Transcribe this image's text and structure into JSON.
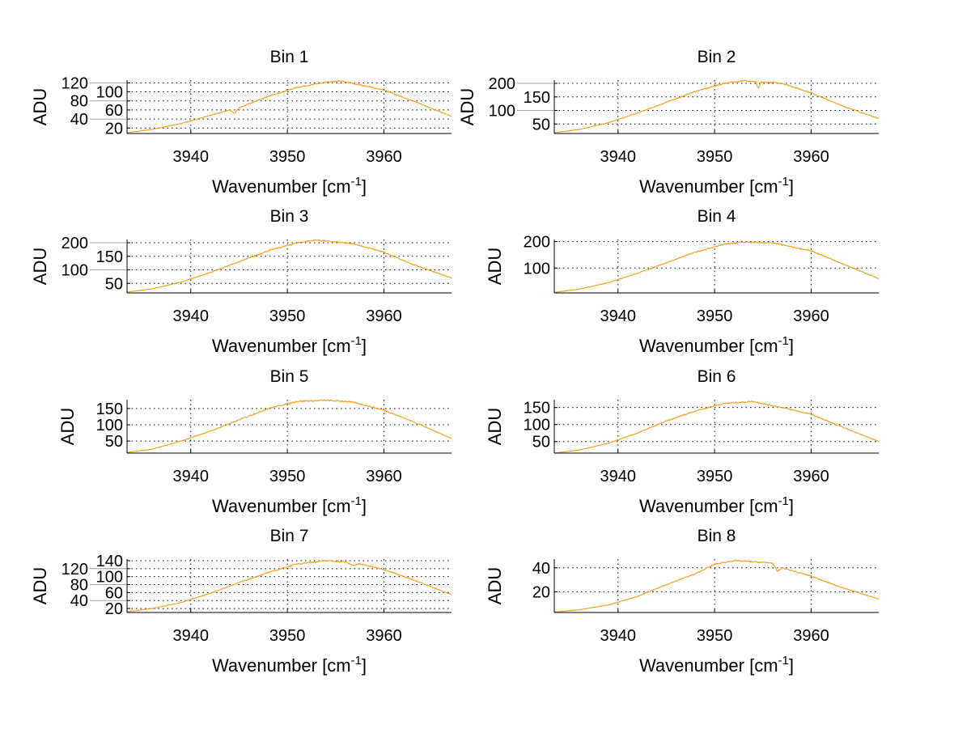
{
  "chart_data": {
    "type": "line",
    "layout": "4x2 subplots",
    "line_color": "#f5a020",
    "subplots": [
      {
        "title": "Bin 1",
        "ylabel": "ADU",
        "xlabel_main": "Wavenumber [cm",
        "xlabel_sup": "-1",
        "xlabel_end": "]",
        "xlim": [
          3933.4,
          3967
        ],
        "ylim": [
          8,
          126
        ],
        "xticks": [
          3940,
          3950,
          3960
        ],
        "yticks": [
          20,
          40,
          60,
          80,
          100,
          120
        ],
        "grid": true,
        "x": [
          3933.4,
          3936,
          3939,
          3942,
          3944,
          3944.5,
          3945,
          3948,
          3951,
          3954,
          3955.5,
          3957,
          3960,
          3963,
          3967
        ],
        "y": [
          10,
          17,
          30,
          48,
          60,
          52,
          65,
          90,
          110,
          121,
          124,
          118,
          104,
          80,
          46
        ]
      },
      {
        "title": "Bin 2",
        "ylabel": "ADU",
        "xlabel_main": "Wavenumber [cm",
        "xlabel_sup": "-1",
        "xlabel_end": "]",
        "xlim": [
          3933.4,
          3967
        ],
        "ylim": [
          15,
          212
        ],
        "xticks": [
          3940,
          3950,
          3960
        ],
        "yticks": [
          50,
          100,
          150,
          200
        ],
        "grid": true,
        "x": [
          3933.4,
          3936,
          3939,
          3942,
          3945,
          3948,
          3951,
          3953,
          3954.3,
          3954.5,
          3954.8,
          3957,
          3960,
          3963,
          3967
        ],
        "y": [
          18,
          30,
          55,
          90,
          130,
          170,
          200,
          210,
          205,
          178,
          205,
          200,
          165,
          120,
          70
        ]
      },
      {
        "title": "Bin 3",
        "ylabel": "ADU",
        "xlabel_main": "Wavenumber [cm",
        "xlabel_sup": "-1",
        "xlabel_end": "]",
        "xlim": [
          3933.4,
          3967
        ],
        "ylim": [
          15,
          212
        ],
        "xticks": [
          3940,
          3950,
          3960
        ],
        "yticks": [
          50,
          100,
          150,
          200
        ],
        "grid": true,
        "x": [
          3933.4,
          3936,
          3939,
          3942,
          3945,
          3948,
          3951,
          3953,
          3957,
          3960,
          3963,
          3967
        ],
        "y": [
          18,
          30,
          55,
          90,
          130,
          170,
          200,
          210,
          195,
          165,
          120,
          70
        ]
      },
      {
        "title": "Bin 4",
        "ylabel": "ADU",
        "xlabel_main": "Wavenumber [cm",
        "xlabel_sup": "-1",
        "xlabel_end": "]",
        "xlim": [
          3933.4,
          3967
        ],
        "ylim": [
          6,
          208
        ],
        "xticks": [
          3940,
          3950,
          3960
        ],
        "yticks": [
          100,
          200
        ],
        "grid": true,
        "x": [
          3933.4,
          3936,
          3939,
          3942,
          3945,
          3948,
          3951,
          3953,
          3956,
          3960,
          3963,
          3967
        ],
        "y": [
          8,
          20,
          45,
          80,
          120,
          160,
          190,
          198,
          195,
          165,
          120,
          60
        ]
      },
      {
        "title": "Bin 5",
        "ylabel": "ADU",
        "xlabel_main": "Wavenumber [cm",
        "xlabel_sup": "-1",
        "xlabel_end": "]",
        "xlim": [
          3933.4,
          3967
        ],
        "ylim": [
          13,
          177
        ],
        "xticks": [
          3940,
          3950,
          3960
        ],
        "yticks": [
          50,
          100,
          150
        ],
        "grid": true,
        "x": [
          3933.4,
          3936,
          3939,
          3942,
          3945,
          3948,
          3951,
          3954,
          3956,
          3957,
          3960,
          3963,
          3967
        ],
        "y": [
          15,
          25,
          50,
          80,
          115,
          150,
          172,
          175,
          172,
          168,
          145,
          110,
          58
        ]
      },
      {
        "title": "Bin 6",
        "ylabel": "ADU",
        "xlabel_main": "Wavenumber [cm",
        "xlabel_sup": "-1",
        "xlabel_end": "]",
        "xlim": [
          3933.4,
          3967
        ],
        "ylim": [
          16,
          173
        ],
        "xticks": [
          3940,
          3950,
          3960
        ],
        "yticks": [
          50,
          100,
          150
        ],
        "grid": true,
        "x": [
          3933.4,
          3936,
          3939,
          3942,
          3945,
          3948,
          3951,
          3954,
          3956,
          3957,
          3960,
          3963,
          3967
        ],
        "y": [
          16,
          25,
          45,
          75,
          110,
          140,
          162,
          168,
          155,
          150,
          130,
          95,
          50
        ]
      },
      {
        "title": "Bin 7",
        "ylabel": "ADU",
        "xlabel_main": "Wavenumber [cm",
        "xlabel_sup": "-1",
        "xlabel_end": "]",
        "xlim": [
          3933.4,
          3967
        ],
        "ylim": [
          10,
          144
        ],
        "xticks": [
          3940,
          3950,
          3960
        ],
        "yticks": [
          20,
          40,
          60,
          80,
          100,
          120,
          140
        ],
        "grid": true,
        "x": [
          3933.4,
          3936,
          3939,
          3942,
          3945,
          3948,
          3951,
          3954,
          3956,
          3956.8,
          3957.5,
          3960,
          3963,
          3967
        ],
        "y": [
          12,
          20,
          35,
          58,
          85,
          110,
          132,
          140,
          137,
          128,
          132,
          118,
          92,
          55
        ]
      },
      {
        "title": "Bin 8",
        "ylabel": "ADU",
        "xlabel_main": "Wavenumber [cm",
        "xlabel_sup": "-1",
        "xlabel_end": "]",
        "xlim": [
          3933.4,
          3967
        ],
        "ylim": [
          2.7,
          47.3
        ],
        "xticks": [
          3940,
          3950,
          3960
        ],
        "yticks": [
          20,
          40
        ],
        "grid": true,
        "x": [
          3933.4,
          3936,
          3939,
          3942,
          3945,
          3948,
          3950,
          3952,
          3954,
          3956,
          3956.5,
          3957,
          3960,
          3963,
          3967
        ],
        "y": [
          3,
          5,
          9,
          16,
          26,
          35,
          43,
          46,
          45,
          44,
          37,
          40,
          33,
          24,
          14
        ]
      }
    ]
  }
}
